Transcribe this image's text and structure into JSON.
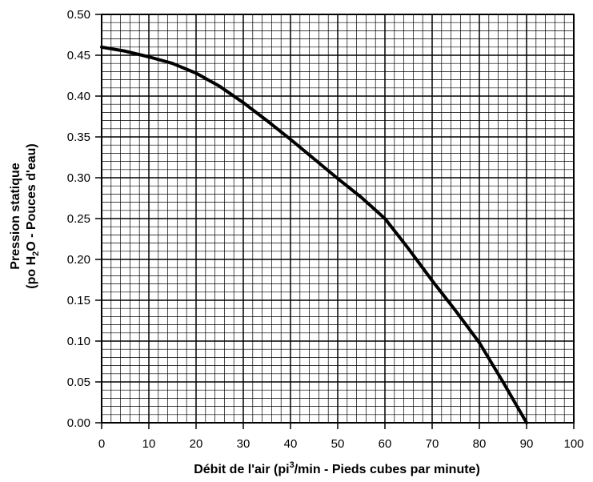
{
  "chart_data": {
    "type": "line",
    "xlabel": {
      "prefix": "Débit de l'air (pi",
      "sup": "3",
      "suffix": "/min - Pieds cubes par minute)"
    },
    "ylabel": {
      "line1": "Pression statique",
      "line2_prefix": "(po H",
      "line2_sub": "2",
      "line2_suffix": "O - Pouces d'eau)"
    },
    "xlim": [
      0,
      100
    ],
    "ylim": [
      0,
      0.5
    ],
    "x_ticks": [
      "0",
      "10",
      "20",
      "30",
      "40",
      "50",
      "60",
      "70",
      "80",
      "90",
      "100"
    ],
    "y_ticks": [
      "0.00",
      "0.05",
      "0.10",
      "0.15",
      "0.20",
      "0.25",
      "0.30",
      "0.35",
      "0.40",
      "0.45",
      "0.50"
    ],
    "grid": true,
    "series": [
      {
        "x": [
          0,
          5,
          10,
          15,
          20,
          25,
          30,
          35,
          40,
          45,
          50,
          55,
          60,
          65,
          70,
          75,
          80,
          85,
          90
        ],
        "y": [
          0.46,
          0.455,
          0.448,
          0.44,
          0.428,
          0.412,
          0.392,
          0.37,
          0.347,
          0.323,
          0.299,
          0.276,
          0.25,
          0.213,
          0.174,
          0.137,
          0.098,
          0.05,
          0.0
        ]
      }
    ],
    "line_color": "#000000"
  }
}
